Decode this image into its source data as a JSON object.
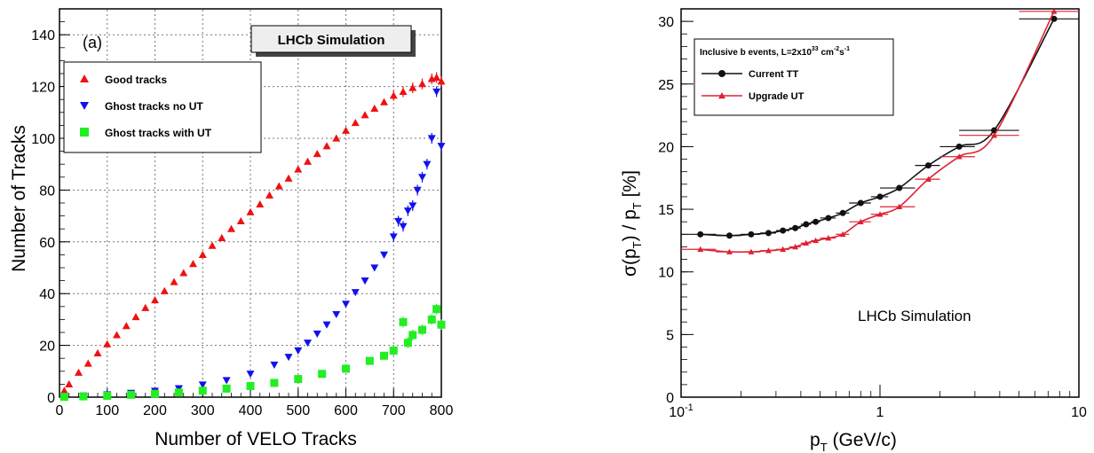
{
  "chart_data": [
    {
      "type": "scatter",
      "panel_tag": "(a)",
      "badge": "LHCb Simulation",
      "xlabel": "Number of VELO Tracks",
      "ylabel": "Number of Tracks",
      "xlim": [
        0,
        800
      ],
      "ylim": [
        0,
        150
      ],
      "xticks": [
        0,
        100,
        200,
        300,
        400,
        500,
        600,
        700,
        800
      ],
      "yticks": [
        0,
        20,
        40,
        60,
        80,
        100,
        120,
        140
      ],
      "grid": true,
      "legend_position": "top-left",
      "series": [
        {
          "name": "Good tracks",
          "marker": "triangle-up",
          "color": "#ee1111",
          "points": [
            [
              10,
              2.5
            ],
            [
              20,
              5
            ],
            [
              40,
              9.5
            ],
            [
              60,
              13
            ],
            [
              80,
              17
            ],
            [
              100,
              20.5
            ],
            [
              120,
              24
            ],
            [
              140,
              27.5
            ],
            [
              160,
              31
            ],
            [
              180,
              34.5
            ],
            [
              200,
              37.5
            ],
            [
              220,
              41
            ],
            [
              240,
              44.5
            ],
            [
              260,
              48
            ],
            [
              280,
              51.5
            ],
            [
              300,
              55
            ],
            [
              320,
              58.5
            ],
            [
              340,
              61.5
            ],
            [
              360,
              65
            ],
            [
              380,
              68
            ],
            [
              400,
              71.5
            ],
            [
              420,
              74.5
            ],
            [
              440,
              78
            ],
            [
              460,
              81.5
            ],
            [
              480,
              84.5
            ],
            [
              500,
              88
            ],
            [
              520,
              91
            ],
            [
              540,
              94
            ],
            [
              560,
              97
            ],
            [
              580,
              100
            ],
            [
              600,
              103
            ],
            [
              620,
              106
            ],
            [
              640,
              109
            ],
            [
              660,
              111.5
            ],
            [
              680,
              114
            ],
            [
              700,
              116.5
            ],
            [
              720,
              118
            ],
            [
              740,
              119.5
            ],
            [
              760,
              121
            ],
            [
              780,
              123
            ],
            [
              790,
              123.5
            ],
            [
              800,
              122
            ]
          ]
        },
        {
          "name": "Ghost tracks no UT",
          "marker": "triangle-down",
          "color": "#1111ee",
          "points": [
            [
              10,
              0.3
            ],
            [
              50,
              0.6
            ],
            [
              100,
              1
            ],
            [
              150,
              1.6
            ],
            [
              200,
              2.4
            ],
            [
              250,
              3.4
            ],
            [
              300,
              4.8
            ],
            [
              350,
              6.5
            ],
            [
              400,
              9
            ],
            [
              450,
              12.5
            ],
            [
              480,
              15.5
            ],
            [
              500,
              18
            ],
            [
              520,
              21
            ],
            [
              540,
              24.5
            ],
            [
              560,
              28
            ],
            [
              580,
              32
            ],
            [
              600,
              36
            ],
            [
              620,
              40.5
            ],
            [
              640,
              45
            ],
            [
              660,
              50
            ],
            [
              680,
              55
            ],
            [
              700,
              62
            ],
            [
              710,
              68
            ],
            [
              720,
              66
            ],
            [
              730,
              72
            ],
            [
              740,
              74
            ],
            [
              750,
              80
            ],
            [
              760,
              85
            ],
            [
              770,
              90
            ],
            [
              780,
              100
            ],
            [
              790,
              118
            ],
            [
              800,
              97
            ]
          ]
        },
        {
          "name": "Ghost tracks with UT",
          "marker": "square",
          "color": "#22ee22",
          "points": [
            [
              10,
              0.1
            ],
            [
              50,
              0.3
            ],
            [
              100,
              0.5
            ],
            [
              150,
              0.9
            ],
            [
              200,
              1.3
            ],
            [
              250,
              1.8
            ],
            [
              300,
              2.5
            ],
            [
              350,
              3.3
            ],
            [
              400,
              4.3
            ],
            [
              450,
              5.5
            ],
            [
              500,
              7
            ],
            [
              550,
              9
            ],
            [
              600,
              11
            ],
            [
              650,
              14
            ],
            [
              680,
              16
            ],
            [
              700,
              18
            ],
            [
              720,
              29
            ],
            [
              730,
              21
            ],
            [
              740,
              24
            ],
            [
              760,
              26
            ],
            [
              780,
              30
            ],
            [
              790,
              34
            ],
            [
              800,
              28
            ]
          ]
        }
      ]
    },
    {
      "type": "line",
      "annotation": "LHCb Simulation",
      "legend_header": "Inclusive b events, L=2x10",
      "legend_header_sup1": "33",
      "legend_header_mid": " cm",
      "legend_header_sup2": "-2",
      "legend_header_mid2": "s",
      "legend_header_sup3": "-1",
      "xlabel": "p",
      "xlabel_sub": "T",
      "xlabel_rest": " (GeV/c)",
      "ylabel_pre": "σ(p",
      "ylabel_sub1": "T",
      "ylabel_mid": ") / p",
      "ylabel_sub2": "T",
      "ylabel_post": "  [%]",
      "x_scale": "log",
      "xlim": [
        0.1,
        10
      ],
      "ylim": [
        0,
        31
      ],
      "x_tick_labels": [
        {
          "v": 0.1,
          "base": "10",
          "exp": "-1"
        },
        {
          "v": 1,
          "base": "1",
          "exp": ""
        },
        {
          "v": 10,
          "base": "10",
          "exp": ""
        }
      ],
      "yticks": [
        0,
        5,
        10,
        15,
        20,
        25,
        30
      ],
      "grid": false,
      "legend_position": "top-left",
      "series": [
        {
          "name": "Current TT",
          "marker": "circle",
          "color": "#111111",
          "points": [
            [
              0.125,
              13.0
            ],
            [
              0.175,
              12.9
            ],
            [
              0.225,
              13.0
            ],
            [
              0.275,
              13.1
            ],
            [
              0.325,
              13.3
            ],
            [
              0.375,
              13.5
            ],
            [
              0.425,
              13.8
            ],
            [
              0.475,
              14.0
            ],
            [
              0.55,
              14.3
            ],
            [
              0.65,
              14.7
            ],
            [
              0.8,
              15.5
            ],
            [
              1.0,
              16.0
            ],
            [
              1.25,
              16.7
            ],
            [
              1.75,
              18.5
            ],
            [
              2.5,
              20.0
            ],
            [
              3.75,
              21.3
            ],
            [
              7.5,
              30.2
            ]
          ],
          "xerr": [
            [
              0.1,
              0.15
            ],
            [
              0.15,
              0.2
            ],
            [
              0.2,
              0.25
            ],
            [
              0.25,
              0.3
            ],
            [
              0.3,
              0.35
            ],
            [
              0.35,
              0.4
            ],
            [
              0.4,
              0.45
            ],
            [
              0.45,
              0.5
            ],
            [
              0.5,
              0.6
            ],
            [
              0.6,
              0.7
            ],
            [
              0.7,
              0.9
            ],
            [
              0.9,
              1.1
            ],
            [
              1.0,
              1.5
            ],
            [
              1.5,
              2.0
            ],
            [
              2.0,
              3.0
            ],
            [
              2.5,
              5.0
            ],
            [
              5.0,
              10.0
            ]
          ]
        },
        {
          "name": "Upgrade UT",
          "marker": "triangle-up",
          "color": "#dd2233",
          "points": [
            [
              0.125,
              11.8
            ],
            [
              0.175,
              11.6
            ],
            [
              0.225,
              11.6
            ],
            [
              0.275,
              11.7
            ],
            [
              0.325,
              11.8
            ],
            [
              0.375,
              12.0
            ],
            [
              0.425,
              12.3
            ],
            [
              0.475,
              12.5
            ],
            [
              0.55,
              12.7
            ],
            [
              0.65,
              13.0
            ],
            [
              0.8,
              14.0
            ],
            [
              1.0,
              14.6
            ],
            [
              1.25,
              15.2
            ],
            [
              1.75,
              17.4
            ],
            [
              2.5,
              19.2
            ],
            [
              3.75,
              20.9
            ],
            [
              7.5,
              30.8
            ]
          ],
          "xerr": [
            [
              0.1,
              0.15
            ],
            [
              0.15,
              0.2
            ],
            [
              0.2,
              0.25
            ],
            [
              0.25,
              0.3
            ],
            [
              0.3,
              0.35
            ],
            [
              0.35,
              0.4
            ],
            [
              0.4,
              0.45
            ],
            [
              0.45,
              0.5
            ],
            [
              0.5,
              0.6
            ],
            [
              0.6,
              0.7
            ],
            [
              0.7,
              0.9
            ],
            [
              0.9,
              1.1
            ],
            [
              1.0,
              1.5
            ],
            [
              1.5,
              2.0
            ],
            [
              2.0,
              3.0
            ],
            [
              2.5,
              5.0
            ],
            [
              5.0,
              10.0
            ]
          ]
        }
      ]
    }
  ]
}
